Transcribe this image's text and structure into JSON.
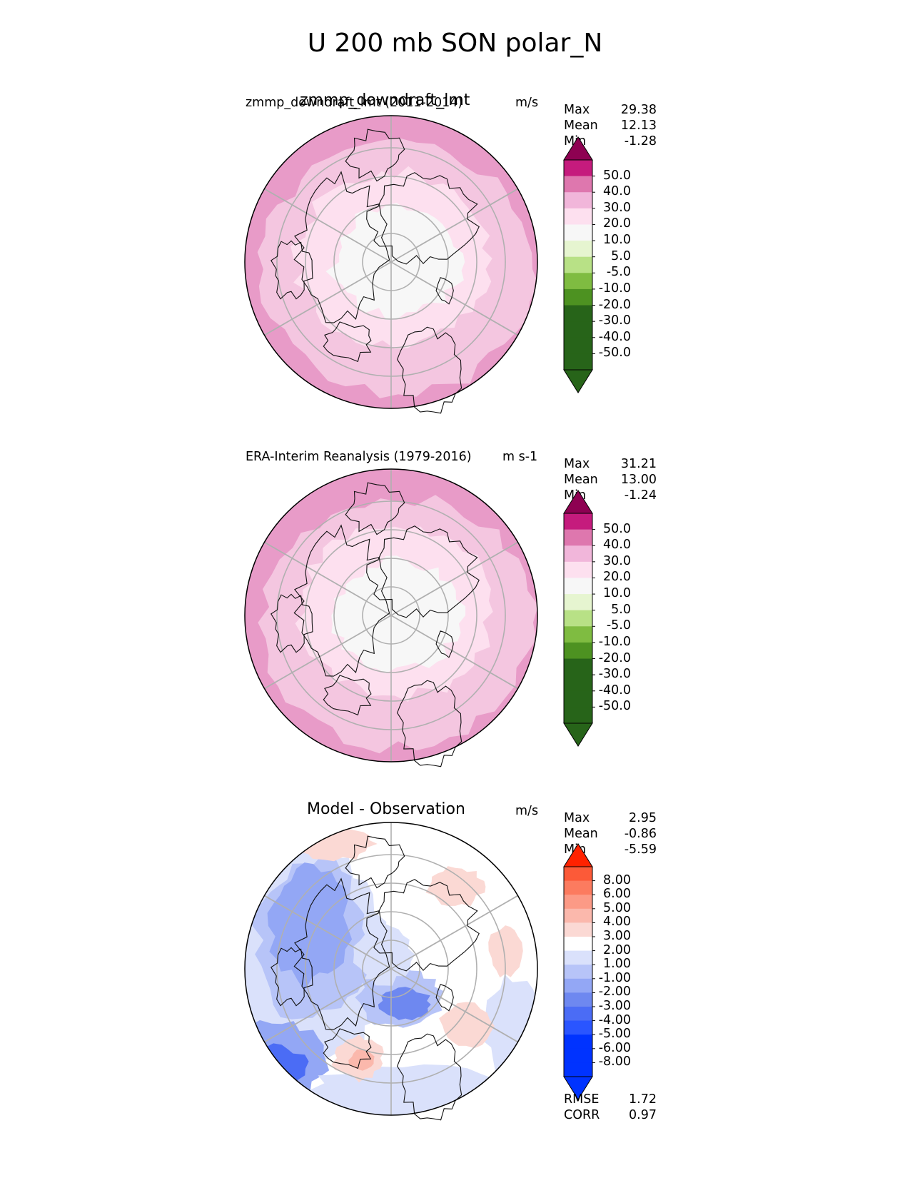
{
  "title": "U 200 mb SON polar_N",
  "colors": {
    "pink_scale": [
      "#276419",
      "#4d9221",
      "#7fbc41",
      "#b8e186",
      "#e6f5d0",
      "#f7f7f7",
      "#fde0ef",
      "#f1b6da",
      "#de77ae",
      "#c51b7d",
      "#8e0152"
    ],
    "pink_fields": [
      "#f7f7f7",
      "#fde0ef",
      "#f4c6e0",
      "#e89bc8"
    ],
    "diff_scale": [
      "#0033ff",
      "#2a55ff",
      "#4b6cf5",
      "#6e88f0",
      "#93a7f5",
      "#b7c4f8",
      "#dae1fb",
      "#ffffff",
      "#fbd9d4",
      "#fbb8ac",
      "#fc9a86",
      "#fc7b5f",
      "#fc5a38",
      "#ff2200"
    ],
    "coast": "#111111",
    "grid": "#b0b0b0"
  },
  "panels": [
    {
      "title": "zmmp_downdraft_lmt",
      "subtitle": "zmmp_downdraft_lmt (2011-2014)",
      "units": "m/s",
      "stats": [
        {
          "label": "Max",
          "value": "29.38"
        },
        {
          "label": "Mean",
          "value": "12.13"
        },
        {
          "label": "Min",
          "value": "-1.28"
        }
      ],
      "colorbar": {
        "labels": [
          "50.0",
          "40.0",
          "30.0",
          "20.0",
          "10.0",
          "5.0",
          "-5.0",
          "-10.0",
          "-20.0",
          "-30.0",
          "-40.0",
          "-50.0"
        ]
      }
    },
    {
      "title": "",
      "subtitle": "ERA-Interim Reanalysis (1979-2016)",
      "units": "m s-1",
      "stats": [
        {
          "label": "Max",
          "value": "31.21"
        },
        {
          "label": "Mean",
          "value": "13.00"
        },
        {
          "label": "Min",
          "value": "-1.24"
        }
      ],
      "colorbar": {
        "labels": [
          "50.0",
          "40.0",
          "30.0",
          "20.0",
          "10.0",
          "5.0",
          "-5.0",
          "-10.0",
          "-20.0",
          "-30.0",
          "-40.0",
          "-50.0"
        ]
      }
    },
    {
      "title": "Model - Observation",
      "subtitle": "",
      "units": "m/s",
      "stats": [
        {
          "label": "Max",
          "value": "2.95"
        },
        {
          "label": "Mean",
          "value": "-0.86"
        },
        {
          "label": "Min",
          "value": "-5.59"
        }
      ],
      "colorbar": {
        "labels": [
          "8.00",
          "6.00",
          "5.00",
          "4.00",
          "3.00",
          "2.00",
          "1.00",
          "-1.00",
          "-2.00",
          "-3.00",
          "-4.00",
          "-5.00",
          "-6.00",
          "-8.00"
        ]
      },
      "metrics": [
        {
          "label": "RMSE",
          "value": "1.72"
        },
        {
          "label": "CORR",
          "value": "0.97"
        }
      ]
    }
  ],
  "chart_data": [
    {
      "type": "heatmap",
      "title": "zmmp_downdraft_lmt",
      "projection": "north polar stereographic",
      "variable": "U 200 mb",
      "season": "SON",
      "units": "m/s",
      "stats": {
        "max": 29.38,
        "mean": 12.13,
        "min": -1.28
      },
      "levels": [
        -50,
        -40,
        -30,
        -20,
        -10,
        -5,
        5,
        10,
        20,
        30,
        40,
        50
      ]
    },
    {
      "type": "heatmap",
      "title": "ERA-Interim Reanalysis (1979-2016)",
      "projection": "north polar stereographic",
      "variable": "U 200 mb",
      "season": "SON",
      "units": "m s-1",
      "stats": {
        "max": 31.21,
        "mean": 13.0,
        "min": -1.24
      },
      "levels": [
        -50,
        -40,
        -30,
        -20,
        -10,
        -5,
        5,
        10,
        20,
        30,
        40,
        50
      ]
    },
    {
      "type": "heatmap",
      "title": "Model - Observation",
      "projection": "north polar stereographic",
      "units": "m/s",
      "stats": {
        "max": 2.95,
        "mean": -0.86,
        "min": -5.59,
        "rmse": 1.72,
        "corr": 0.97
      },
      "levels": [
        -8,
        -6,
        -5,
        -4,
        -3,
        -2,
        -1,
        1,
        2,
        3,
        4,
        5,
        6,
        8
      ]
    }
  ]
}
